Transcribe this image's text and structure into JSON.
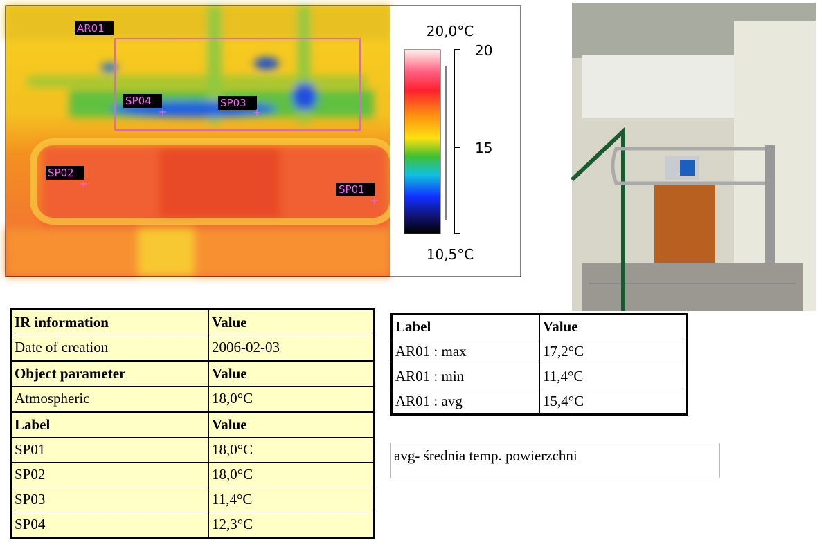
{
  "thermal_image": {
    "area_label": "AR01",
    "spot_labels": [
      "SP01",
      "SP02",
      "SP03",
      "SP04"
    ],
    "scale": {
      "max_label": "20,0°C",
      "min_label": "10,5°C",
      "ticks": [
        "20",
        "15"
      ]
    }
  },
  "ir_table": {
    "sections": [
      {
        "header": [
          "IR information",
          "Value"
        ],
        "rows": [
          [
            "Date of creation",
            "2006-02-03"
          ]
        ]
      },
      {
        "header": [
          "Object parameter",
          "Value"
        ],
        "rows": [
          [
            "Atmospheric",
            "18,0°C"
          ]
        ]
      },
      {
        "header": [
          "Label",
          "Value"
        ],
        "rows": [
          [
            "SP01",
            "18,0°C"
          ],
          [
            "SP02",
            "18,0°C"
          ],
          [
            "SP03",
            "11,4°C"
          ],
          [
            "SP04",
            "12,3°C"
          ]
        ]
      }
    ]
  },
  "area_table": {
    "header": [
      "Label",
      "Value"
    ],
    "rows": [
      [
        "AR01 : max",
        "17,2°C"
      ],
      [
        "AR01 : min",
        "11,4°C"
      ],
      [
        "AR01 : avg",
        "15,4°C"
      ]
    ]
  },
  "note": "avg- średnia temp. powierzchni"
}
